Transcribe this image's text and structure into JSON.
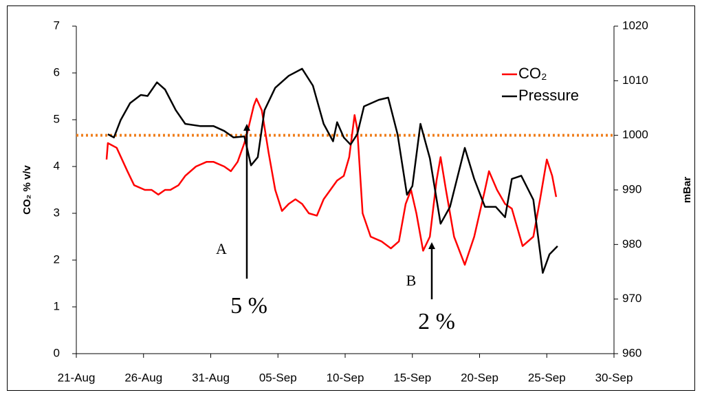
{
  "chart_data": {
    "type": "line",
    "y_label": "CO₂ % v/v",
    "y2_label": "mBar",
    "xlim": [
      0,
      40
    ],
    "xticks": [
      {
        "value": 0,
        "label": "21-Aug"
      },
      {
        "value": 5,
        "label": "26-Aug"
      },
      {
        "value": 10,
        "label": "31-Aug"
      },
      {
        "value": 15,
        "label": "05-Sep"
      },
      {
        "value": 20,
        "label": "10-Sep"
      },
      {
        "value": 25,
        "label": "15-Sep"
      },
      {
        "value": 30,
        "label": "20-Sep"
      },
      {
        "value": 35,
        "label": "25-Sep"
      },
      {
        "value": 40,
        "label": "30-Sep"
      }
    ],
    "ylim": [
      0,
      7
    ],
    "yticks": [
      0,
      1,
      2,
      3,
      4,
      5,
      6,
      7
    ],
    "y2lim": [
      960,
      1020
    ],
    "y2ticks": [
      960,
      970,
      980,
      990,
      1000,
      1010,
      1020
    ],
    "legend": "upper right",
    "reference_line": {
      "axis": "y2",
      "value": 1000,
      "color": "#f07f1e"
    },
    "annotations": [
      "A",
      "5 %",
      "B",
      "2 %"
    ],
    "series": [
      {
        "name": "CO₂",
        "color": "#ff0000",
        "axis": "y",
        "x": [
          2.25,
          2.35,
          3.0,
          3.8,
          4.3,
          5.1,
          5.6,
          6.1,
          6.6,
          7.0,
          7.6,
          8.1,
          8.9,
          9.7,
          10.2,
          11.0,
          11.5,
          12.0,
          12.5,
          12.7,
          13.2,
          13.4,
          13.8,
          14.3,
          14.8,
          15.3,
          15.8,
          16.3,
          16.8,
          17.3,
          17.9,
          18.4,
          18.9,
          19.4,
          19.9,
          20.3,
          20.7,
          20.9,
          21.3,
          21.9,
          22.7,
          23.4,
          24.0,
          24.5,
          24.9,
          25.3,
          25.8,
          26.3,
          26.8,
          27.1,
          27.5,
          28.1,
          28.9,
          29.6,
          30.4,
          30.7,
          31.3,
          31.9,
          32.4,
          33.2,
          34.0,
          34.5,
          35.0,
          35.4,
          35.7
        ],
        "values": [
          4.15,
          4.5,
          4.4,
          3.9,
          3.6,
          3.5,
          3.5,
          3.4,
          3.5,
          3.5,
          3.6,
          3.8,
          4.0,
          4.1,
          4.1,
          4.0,
          3.9,
          4.1,
          4.5,
          4.7,
          5.3,
          5.45,
          5.2,
          4.3,
          3.5,
          3.05,
          3.2,
          3.3,
          3.2,
          3.0,
          2.95,
          3.3,
          3.5,
          3.7,
          3.8,
          4.2,
          5.1,
          4.8,
          3.0,
          2.5,
          2.4,
          2.25,
          2.4,
          3.2,
          3.5,
          3.0,
          2.2,
          2.5,
          3.7,
          4.2,
          3.5,
          2.5,
          1.9,
          2.5,
          3.5,
          3.9,
          3.5,
          3.2,
          3.1,
          2.3,
          2.5,
          3.3,
          4.15,
          3.8,
          3.35
        ]
      },
      {
        "name": "Pressure",
        "color": "#000000",
        "axis": "y2",
        "x": [
          2.35,
          2.8,
          3.3,
          4.0,
          4.8,
          5.3,
          6.0,
          6.6,
          7.4,
          8.1,
          9.2,
          10.2,
          11.0,
          11.7,
          12.5,
          13.0,
          13.5,
          14.0,
          14.8,
          15.8,
          16.8,
          17.6,
          18.4,
          19.1,
          19.4,
          19.9,
          20.4,
          20.9,
          21.4,
          22.5,
          23.2,
          23.9,
          24.6,
          25.0,
          25.6,
          26.3,
          27.1,
          27.8,
          28.9,
          29.6,
          30.4,
          31.2,
          31.9,
          32.4,
          33.1,
          34.0,
          34.7,
          35.2,
          35.8
        ],
        "values": [
          1000.2,
          999.6,
          1002.8,
          1005.9,
          1007.4,
          1007.2,
          1009.7,
          1008.4,
          1004.6,
          1002.1,
          1001.7,
          1001.7,
          1000.8,
          999.6,
          999.8,
          994.5,
          996.0,
          1004.6,
          1008.7,
          1010.9,
          1012.2,
          1009.1,
          1002.1,
          998.9,
          1002.4,
          999.6,
          998.3,
          1000.2,
          1005.3,
          1006.5,
          1006.9,
          1000.2,
          989.1,
          990.7,
          1002.1,
          995.8,
          983.8,
          986.9,
          997.7,
          992.0,
          986.9,
          986.9,
          985.0,
          992.0,
          992.6,
          988.2,
          974.8,
          978.2,
          979.7
        ]
      }
    ]
  }
}
